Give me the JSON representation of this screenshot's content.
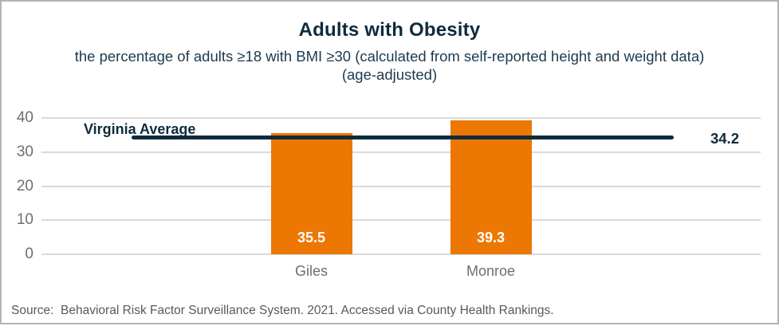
{
  "header": {
    "title": "Adults with Obesity",
    "subtitle": "the percentage of adults ≥18 with BMI ≥30 (calculated from self-reported height and weight data) (age-adjusted)"
  },
  "chart_data": {
    "type": "bar",
    "title": "Adults with Obesity",
    "subtitle": "the percentage of adults ≥18 with BMI ≥30 (calculated from self-reported height and weight data) (age-adjusted)",
    "categories": [
      "Giles",
      "Monroe"
    ],
    "values": [
      35.5,
      39.3
    ],
    "bar_labels": [
      "35.5",
      "39.3"
    ],
    "yticks": [
      0,
      10,
      20,
      30,
      40
    ],
    "ylim": [
      0,
      40
    ],
    "grid": true,
    "xlabel": "",
    "ylabel": "",
    "legend": "none",
    "reference_line": {
      "label": "Virginia Average",
      "value": 34.2,
      "value_label": "34.2"
    }
  },
  "footer": {
    "source": "Source:  Behavioral Risk Factor Surveillance System. 2021. Accessed via County Health Rankings."
  },
  "colors": {
    "bar": "#EC7703",
    "navy": "#0F2B3D",
    "gridline": "#DADADA",
    "tick_text": "#6E6E6E",
    "source_text": "#595959",
    "bar_value_text": "#FFFFFF"
  }
}
